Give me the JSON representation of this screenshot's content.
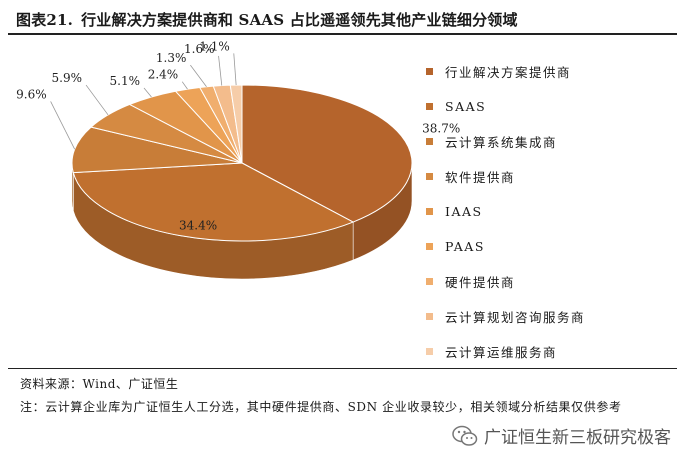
{
  "figure": {
    "number": "图表21.",
    "title": "行业解决方案提供商和 SAAS 占比遥遥领先其他产业链细分领域"
  },
  "chart_data": {
    "type": "pie",
    "style": "3d",
    "slices": [
      {
        "label": "行业解决方案提供商",
        "value": 38.7,
        "display": "38.7%",
        "color": "#B5642C"
      },
      {
        "label": "SAAS",
        "value": 34.4,
        "display": "34.4%",
        "color": "#C0702F"
      },
      {
        "label": "云计算系统集成商",
        "value": 9.6,
        "display": "9.6%",
        "color": "#C87D38"
      },
      {
        "label": "软件提供商",
        "value": 5.9,
        "display": "5.9%",
        "color": "#D58A42"
      },
      {
        "label": "IAAS",
        "value": 5.1,
        "display": "5.1%",
        "color": "#E1954A"
      },
      {
        "label": "PAAS",
        "value": 2.4,
        "display": "2.4%",
        "color": "#EDA358"
      },
      {
        "label": "硬件提供商",
        "value": 1.3,
        "display": "1.3%",
        "color": "#F0AE6E"
      },
      {
        "label": "云计算规划咨询服务商",
        "value": 1.6,
        "display": "1.6%",
        "color": "#F3BC8C"
      },
      {
        "label": "云计算运维服务商",
        "value": 1.1,
        "display": "1.1%",
        "color": "#F6CDA9"
      }
    ],
    "legend_position": "right"
  },
  "source": "资料来源：Wind、广证恒生",
  "note": "注：云计算企业库为广证恒生人工分选，其中硬件提供商、SDN 企业收录较少，相关领域分析结果仅供参考",
  "watermark": {
    "text": "广证恒生新三板研究极客",
    "icon": "wechat-icon"
  }
}
